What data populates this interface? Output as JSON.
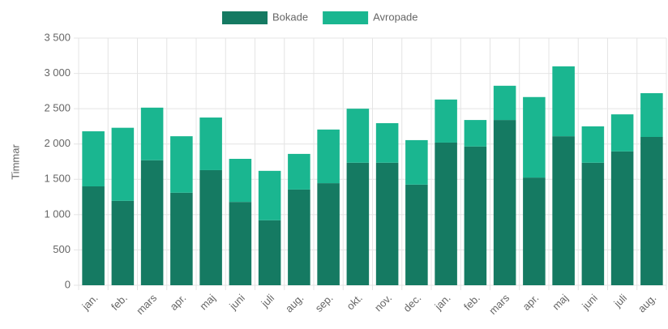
{
  "chart_data": {
    "type": "stacked_bar",
    "y_label": "Timmar",
    "categories": [
      "jan.",
      "feb.",
      "mars",
      "apr.",
      "maj",
      "juni",
      "juli",
      "aug.",
      "sep.",
      "okt.",
      "nov.",
      "dec.",
      "jan.",
      "feb.",
      "mars",
      "apr.",
      "maj",
      "juni",
      "juli",
      "aug."
    ],
    "series": [
      {
        "name": "Bokade",
        "color": "#157a62",
        "values": [
          1400,
          1195,
          1770,
          1310,
          1630,
          1180,
          920,
          1355,
          1445,
          1735,
          1735,
          1425,
          2020,
          1965,
          2340,
          1525,
          2110,
          1735,
          1895,
          2100
        ]
      },
      {
        "name": "Avropade",
        "color": "#1ab690",
        "values": [
          780,
          1035,
          745,
          800,
          745,
          610,
          700,
          505,
          760,
          765,
          560,
          630,
          610,
          375,
          485,
          1140,
          990,
          515,
          525,
          620
        ]
      }
    ],
    "ylim": [
      0,
      3500
    ],
    "yticks": [
      0,
      500,
      {
        "value": 1000,
        "label": "1 000"
      },
      {
        "value": 1500,
        "label": "1 500"
      },
      {
        "value": 2000,
        "label": "2 000"
      },
      {
        "value": 2500,
        "label": "2 500"
      },
      {
        "value": 3000,
        "label": "3 000"
      },
      {
        "value": 3500,
        "label": "3 500"
      }
    ],
    "grid": true
  }
}
